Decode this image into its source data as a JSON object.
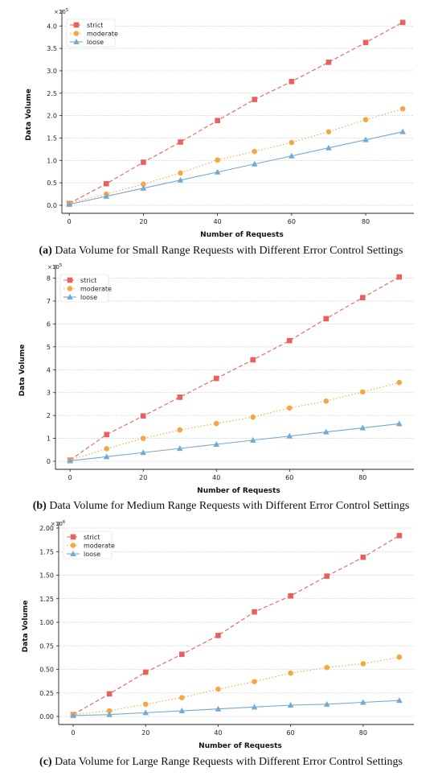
{
  "colors": {
    "strict": "#e8615d",
    "moderate": "#f5a742",
    "loose": "#74a9d3",
    "grid": "#c8c8c8",
    "axis": "#222222"
  },
  "legend_labels": [
    "strict",
    "moderate",
    "loose"
  ],
  "panels": [
    {
      "caption_tag": "(a)",
      "caption_text": " Data Volume for Small Range Requests with Different Error Control Settings",
      "multiplier_base": "×10",
      "multiplier_exp": "5",
      "xlabel": "Number of Requests",
      "ylabel": "Data Volume",
      "xticks": [
        "0",
        "20",
        "40",
        "60",
        "80"
      ],
      "yticks": [
        "0.0",
        "0.5",
        "1.0",
        "1.5",
        "2.0",
        "2.5",
        "3.0",
        "3.5",
        "4.0"
      ]
    },
    {
      "caption_tag": "(b)",
      "caption_text": " Data Volume for Medium Range Requests with Different Error Control Settings",
      "multiplier_base": "×10",
      "multiplier_exp": "5",
      "xlabel": "Number of Requests",
      "ylabel": "Data Volume",
      "xticks": [
        "0",
        "20",
        "40",
        "60",
        "80"
      ],
      "yticks": [
        "0",
        "1",
        "2",
        "3",
        "4",
        "5",
        "6",
        "7",
        "8"
      ]
    },
    {
      "caption_tag": "(c)",
      "caption_text": " Data Volume for Large Range Requests with Different Error Control Settings",
      "multiplier_base": "×10",
      "multiplier_exp": "6",
      "xlabel": "Number of Requests",
      "ylabel": "Data Volume",
      "xticks": [
        "0",
        "20",
        "40",
        "60",
        "80"
      ],
      "yticks": [
        "0.00",
        "0.25",
        "0.50",
        "0.75",
        "1.00",
        "1.25",
        "1.50",
        "1.75",
        "2.00"
      ]
    }
  ],
  "chart_data": [
    {
      "type": "line",
      "title": "",
      "xlabel": "Number of Requests",
      "ylabel": "Data Volume",
      "y_multiplier": "×10^5",
      "x": [
        0,
        10,
        20,
        30,
        40,
        50,
        60,
        70,
        80,
        90
      ],
      "xlim": [
        -2,
        93
      ],
      "ylim": [
        -0.18,
        4.22
      ],
      "grid": "horizontal dotted",
      "legend": "top-left",
      "series": [
        {
          "name": "strict",
          "marker": "square",
          "line": "dashed",
          "values": [
            0.04,
            0.48,
            0.96,
            1.41,
            1.89,
            2.36,
            2.76,
            3.19,
            3.63,
            4.08
          ]
        },
        {
          "name": "moderate",
          "marker": "circle",
          "line": "dotted",
          "values": [
            0.04,
            0.25,
            0.47,
            0.72,
            1.01,
            1.2,
            1.4,
            1.64,
            1.91,
            2.15
          ]
        },
        {
          "name": "loose",
          "marker": "triangle",
          "line": "solid",
          "values": [
            0.02,
            0.2,
            0.38,
            0.56,
            0.74,
            0.92,
            1.1,
            1.28,
            1.46,
            1.64
          ]
        }
      ]
    },
    {
      "type": "line",
      "title": "",
      "xlabel": "Number of Requests",
      "ylabel": "Data Volume",
      "y_multiplier": "×10^5",
      "x": [
        0,
        10,
        20,
        30,
        40,
        50,
        60,
        70,
        80,
        90
      ],
      "xlim": [
        -4,
        94
      ],
      "ylim": [
        -0.35,
        8.3
      ],
      "grid": "horizontal dotted",
      "legend": "top-left",
      "series": [
        {
          "name": "strict",
          "marker": "square",
          "line": "dashed",
          "values": [
            0.05,
            1.17,
            1.98,
            2.8,
            3.62,
            4.43,
            5.27,
            6.23,
            7.15,
            8.05
          ]
        },
        {
          "name": "moderate",
          "marker": "circle",
          "line": "dotted",
          "values": [
            0.05,
            0.55,
            1.0,
            1.37,
            1.65,
            1.93,
            2.33,
            2.63,
            3.03,
            3.44
          ]
        },
        {
          "name": "loose",
          "marker": "triangle",
          "line": "solid",
          "values": [
            0.02,
            0.2,
            0.38,
            0.56,
            0.74,
            0.92,
            1.1,
            1.28,
            1.46,
            1.64
          ]
        }
      ]
    },
    {
      "type": "line",
      "title": "",
      "xlabel": "Number of Requests",
      "ylabel": "Data Volume",
      "y_multiplier": "×10^6",
      "x": [
        0,
        10,
        20,
        30,
        40,
        50,
        60,
        70,
        80,
        90
      ],
      "xlim": [
        -4,
        94
      ],
      "ylim": [
        -0.085,
        2.0
      ],
      "grid": "horizontal dotted",
      "legend": "top-left",
      "series": [
        {
          "name": "strict",
          "marker": "square",
          "line": "dashed",
          "values": [
            0.02,
            0.24,
            0.47,
            0.66,
            0.86,
            1.11,
            1.28,
            1.49,
            1.69,
            1.92
          ]
        },
        {
          "name": "moderate",
          "marker": "circle",
          "line": "dotted",
          "values": [
            0.02,
            0.06,
            0.13,
            0.2,
            0.29,
            0.37,
            0.46,
            0.52,
            0.56,
            0.63
          ]
        },
        {
          "name": "loose",
          "marker": "triangle",
          "line": "solid",
          "values": [
            0.01,
            0.02,
            0.04,
            0.06,
            0.08,
            0.1,
            0.12,
            0.13,
            0.15,
            0.17
          ]
        }
      ]
    }
  ]
}
